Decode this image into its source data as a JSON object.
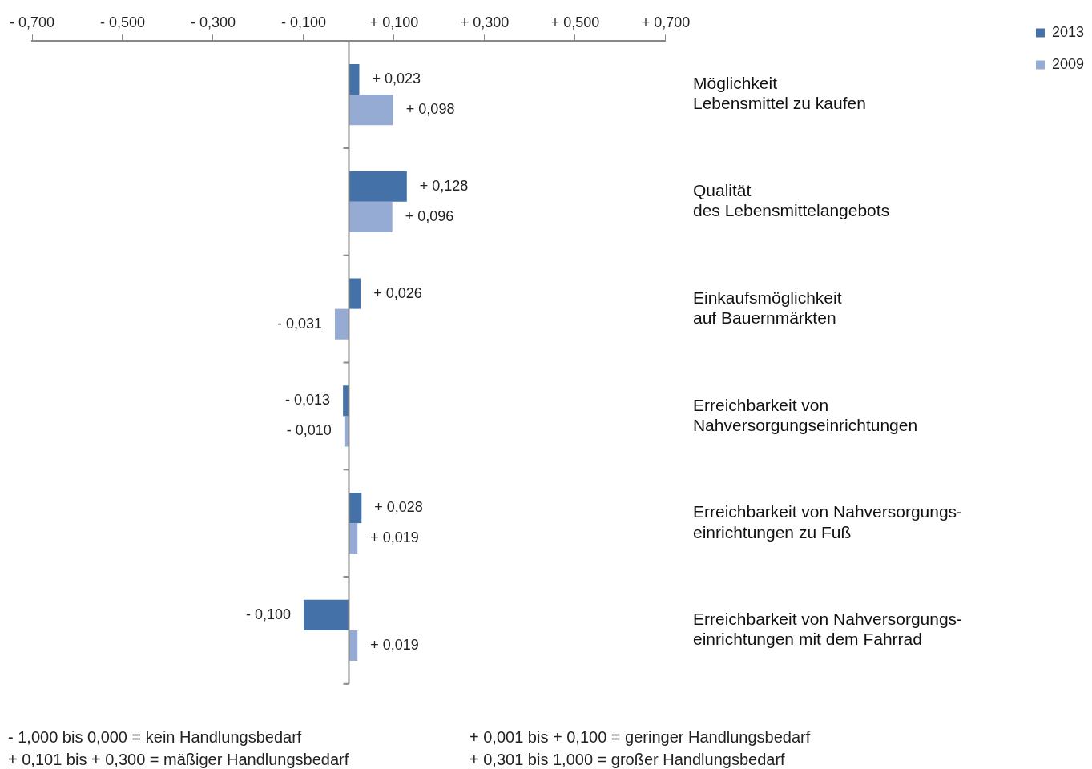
{
  "chart_data": {
    "type": "bar",
    "orientation": "horizontal",
    "categories": [
      "Möglichkeit\nLebensmittel zu kaufen",
      "Qualität\ndes Lebensmittelangebots",
      "Einkaufsmöglichkeit\nauf Bauernmärkten",
      "Erreichbarkeit von\nNahversorgungseinrichtungen",
      "Erreichbarkeit von Nahversorgungs-\neinrichtungen zu Fuß",
      "Erreichbarkeit von Nahversorgungs-\neinrichtungen mit dem Fahrrad"
    ],
    "series": [
      {
        "name": "2013",
        "color": "#4472a8",
        "values": [
          0.023,
          0.128,
          0.026,
          -0.013,
          0.028,
          -0.1
        ],
        "value_labels": [
          "+ 0,023",
          "+ 0,128",
          "+ 0,026",
          "- 0,013",
          "+ 0,028",
          "- 0,100"
        ]
      },
      {
        "name": "2009",
        "color": "#95abd4",
        "values": [
          0.098,
          0.096,
          -0.031,
          -0.01,
          0.019,
          0.019
        ],
        "value_labels": [
          "+ 0,098",
          "+ 0,096",
          "- 0,031",
          "- 0,010",
          "+ 0,019",
          "+ 0,019"
        ]
      }
    ],
    "xlim": [
      -0.7,
      0.7
    ],
    "xticks": [
      {
        "value": -0.7,
        "label": "- 0,700"
      },
      {
        "value": -0.5,
        "label": "- 0,500"
      },
      {
        "value": -0.3,
        "label": "- 0,300"
      },
      {
        "value": -0.1,
        "label": "- 0,100"
      },
      {
        "value": 0.1,
        "label": "+ 0,100"
      },
      {
        "value": 0.3,
        "label": "+ 0,300"
      },
      {
        "value": 0.5,
        "label": "+ 0,500"
      },
      {
        "value": 0.7,
        "label": "+ 0,700"
      }
    ],
    "grid": false,
    "legend": "top right",
    "annotations": [
      "- 1,000 bis 0,000 = kein Handlungsbedarf",
      "+ 0,001 bis + 0,100 = geringer Handlungsbedarf",
      "+ 0,101 bis + 0,300 = mäßiger Handlungsbedarf",
      "+ 0,301 bis 1,000 = großer Handlungsbedarf"
    ]
  }
}
